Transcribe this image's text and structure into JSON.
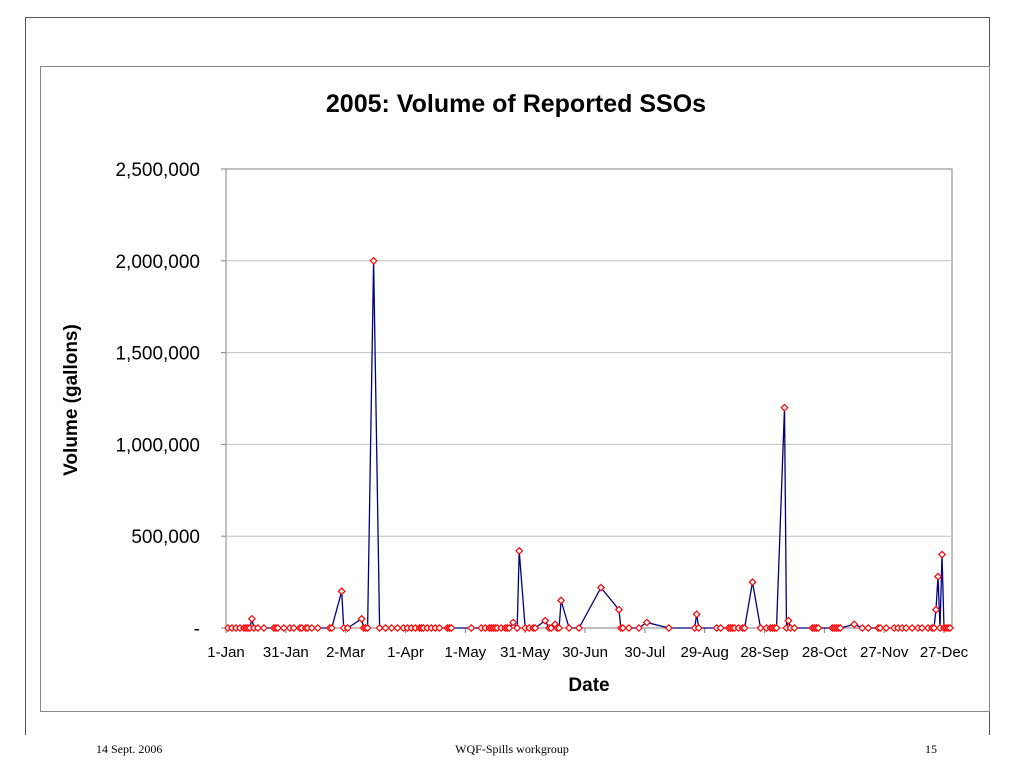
{
  "footer": {
    "date": "14 Sept. 2006",
    "center": "WQF-Spills workgroup",
    "page": "15"
  },
  "colors": {
    "line": "#000080",
    "marker": "#ff0000",
    "grid": "#c0c0c0"
  },
  "chart_data": {
    "type": "line",
    "title": "2005:  Volume of Reported SSOs",
    "xlabel": "Date",
    "ylabel": "Volume (gallons)",
    "ylim": [
      0,
      2500000
    ],
    "yticks": [
      0,
      500000,
      1000000,
      1500000,
      2000000,
      2500000
    ],
    "yticklabels": [
      "-",
      "500,000",
      "1,000,000",
      "1,500,000",
      "2,000,000",
      "2,500,000"
    ],
    "xlim": [
      "2005-01-01",
      "2005-12-31"
    ],
    "xticks": [
      "2005-01-01",
      "2005-01-31",
      "2005-03-02",
      "2005-04-01",
      "2005-05-01",
      "2005-05-31",
      "2005-06-30",
      "2005-07-30",
      "2005-08-29",
      "2005-09-28",
      "2005-10-28",
      "2005-11-27",
      "2005-12-27"
    ],
    "xticklabels": [
      "1-Jan",
      "31-Jan",
      "2-Mar",
      "1-Apr",
      "1-May",
      "31-May",
      "30-Jun",
      "30-Jul",
      "29-Aug",
      "28-Sep",
      "28-Oct",
      "27-Nov",
      "27-Dec"
    ],
    "grid": "horizontal",
    "marker": "diamond",
    "series": [
      {
        "x": [
          "2005-01-02",
          "2005-01-04",
          "2005-01-06",
          "2005-01-08",
          "2005-01-10",
          "2005-01-11",
          "2005-01-12",
          "2005-01-13",
          "2005-01-14",
          "2005-01-15",
          "2005-01-17",
          "2005-01-20",
          "2005-01-25",
          "2005-01-26",
          "2005-01-27",
          "2005-01-30",
          "2005-02-02",
          "2005-02-04",
          "2005-02-07",
          "2005-02-08",
          "2005-02-10",
          "2005-02-11",
          "2005-02-13",
          "2005-02-16",
          "2005-02-22",
          "2005-02-23",
          "2005-02-28",
          "2005-03-01",
          "2005-03-03",
          "2005-03-10",
          "2005-03-11",
          "2005-03-12",
          "2005-03-13",
          "2005-03-16",
          "2005-03-19",
          "2005-03-22",
          "2005-03-25",
          "2005-03-28",
          "2005-03-31",
          "2005-04-02",
          "2005-04-04",
          "2005-04-06",
          "2005-04-08",
          "2005-04-09",
          "2005-04-10",
          "2005-04-12",
          "2005-04-14",
          "2005-04-16",
          "2005-04-18",
          "2005-04-22",
          "2005-04-23",
          "2005-04-24",
          "2005-05-04",
          "2005-05-09",
          "2005-05-11",
          "2005-05-13",
          "2005-05-14",
          "2005-05-15",
          "2005-05-16",
          "2005-05-17",
          "2005-05-19",
          "2005-05-21",
          "2005-05-22",
          "2005-05-23",
          "2005-05-25",
          "2005-05-27",
          "2005-05-28",
          "2005-05-31",
          "2005-06-02",
          "2005-06-04",
          "2005-06-05",
          "2005-06-10",
          "2005-06-12",
          "2005-06-13",
          "2005-06-15",
          "2005-06-16",
          "2005-06-17",
          "2005-06-18",
          "2005-06-22",
          "2005-06-27",
          "2005-07-08",
          "2005-07-17",
          "2005-07-18",
          "2005-07-19",
          "2005-07-22",
          "2005-07-27",
          "2005-07-31",
          "2005-08-11",
          "2005-08-24",
          "2005-08-25",
          "2005-08-26",
          "2005-09-04",
          "2005-09-06",
          "2005-09-10",
          "2005-09-11",
          "2005-09-12",
          "2005-09-13",
          "2005-09-15",
          "2005-09-17",
          "2005-09-18",
          "2005-09-22",
          "2005-09-26",
          "2005-09-29",
          "2005-10-01",
          "2005-10-02",
          "2005-10-03",
          "2005-10-04",
          "2005-10-08",
          "2005-10-09",
          "2005-10-10",
          "2005-10-11",
          "2005-10-13",
          "2005-10-22",
          "2005-10-23",
          "2005-10-24",
          "2005-10-25",
          "2005-11-01",
          "2005-11-02",
          "2005-11-03",
          "2005-11-04",
          "2005-11-05",
          "2005-11-12",
          "2005-11-16",
          "2005-11-19",
          "2005-11-24",
          "2005-11-25",
          "2005-11-28",
          "2005-12-02",
          "2005-12-04",
          "2005-12-06",
          "2005-12-08",
          "2005-12-11",
          "2005-12-14",
          "2005-12-16",
          "2005-12-19",
          "2005-12-21",
          "2005-12-22",
          "2005-12-23",
          "2005-12-24",
          "2005-12-25",
          "2005-12-26",
          "2005-12-27",
          "2005-12-28",
          "2005-12-29",
          "2005-12-30"
        ],
        "y": [
          0,
          0,
          0,
          0,
          0,
          0,
          0,
          0,
          50000,
          0,
          0,
          0,
          0,
          0,
          0,
          0,
          0,
          0,
          0,
          0,
          0,
          0,
          0,
          0,
          0,
          0,
          200000,
          0,
          0,
          50000,
          0,
          0,
          0,
          2000000,
          0,
          0,
          0,
          0,
          0,
          0,
          0,
          0,
          0,
          0,
          0,
          0,
          0,
          0,
          0,
          0,
          0,
          0,
          0,
          0,
          0,
          0,
          0,
          0,
          0,
          0,
          0,
          0,
          0,
          0,
          30000,
          0,
          420000,
          0,
          0,
          0,
          0,
          40000,
          0,
          0,
          20000,
          0,
          0,
          150000,
          0,
          0,
          220000,
          100000,
          0,
          0,
          0,
          0,
          30000,
          0,
          0,
          75000,
          0,
          0,
          0,
          0,
          0,
          0,
          0,
          0,
          0,
          0,
          250000,
          0,
          0,
          0,
          0,
          0,
          0,
          1200000,
          0,
          40000,
          0,
          0,
          0,
          0,
          0,
          0,
          0,
          0,
          0,
          0,
          0,
          20000,
          0,
          0,
          0,
          0,
          0,
          0,
          0,
          0,
          0,
          0,
          0,
          0,
          0,
          0,
          0,
          100000,
          280000,
          0,
          400000,
          0,
          0,
          0,
          0
        ]
      }
    ]
  }
}
